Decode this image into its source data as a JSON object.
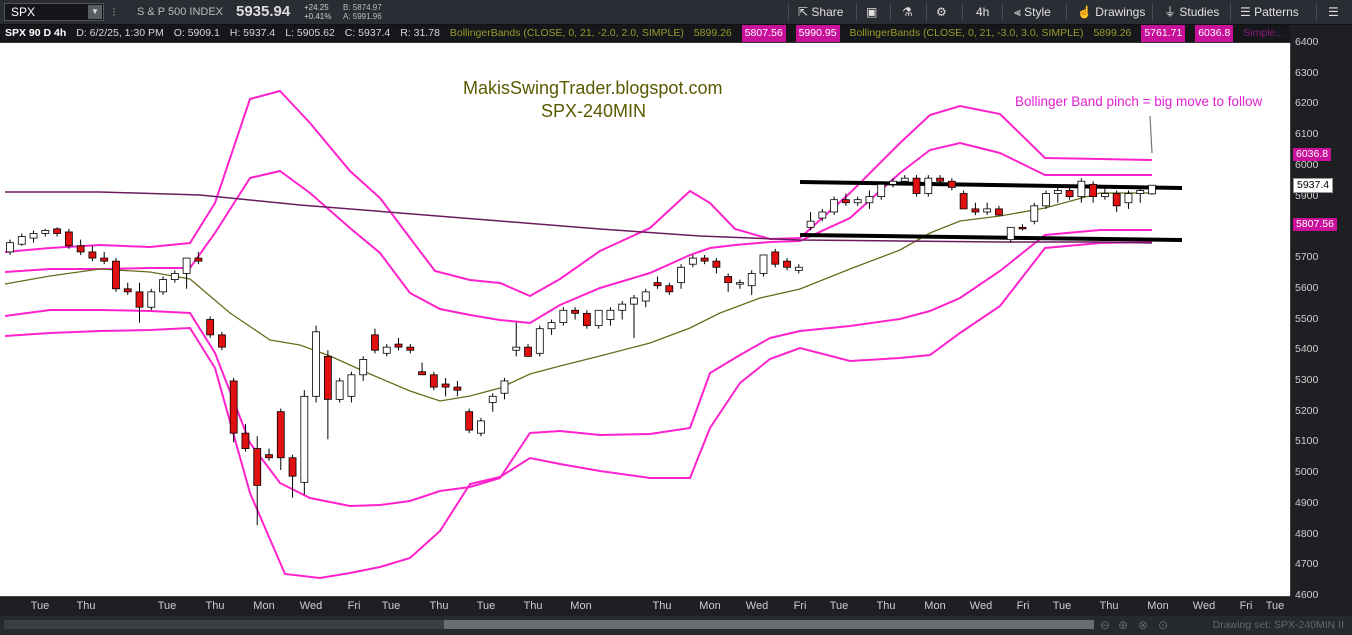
{
  "toolbar": {
    "symbol": "SPX",
    "symbol_name": "S & P 500 INDEX",
    "last": "5935.94",
    "change": "+24.25",
    "change_pct": "+0.41%",
    "bid": "B: 5874.97",
    "ask": "A: 5991.96",
    "share": "Share",
    "timeframe": "4h",
    "style": "Style",
    "drawings": "Drawings",
    "studies": "Studies",
    "patterns": "Patterns"
  },
  "infobar": {
    "title": "SPX 90 D 4h",
    "date": "D: 6/2/25, 1:30 PM",
    "open": "O: 5909.1",
    "high": "H: 5937.4",
    "low": "L: 5905.62",
    "close": "C: 5937.4",
    "range": "R: 31.78",
    "bb1_label": "BollingerBands (CLOSE, 0, 21, -2.0, 2.0, SIMPLE)",
    "bb1_mid": "5899.26",
    "bb1_low": "5807.56",
    "bb1_up": "5990.95",
    "bb2_label": "BollingerBands (CLOSE, 0, 21, -3.0, 3.0, SIMPLE)",
    "bb2_mid": "5899.26",
    "bb2_low": "5761.71",
    "bb2_up": "6036.8",
    "simple": "Simple..."
  },
  "annotations": {
    "site": "MakisSwingTrader.blogspot.com",
    "chart_name": "SPX-240MIN",
    "note": "Bollinger Band pinch = big move to follow"
  },
  "price_labels": {
    "upper_band": "6036.8",
    "last": "5937.4",
    "lower_band": "5807.56"
  },
  "footer": {
    "drawing_set": "Drawing set: SPX-240MIN II"
  },
  "colors": {
    "band": "#ff22cc",
    "mid": "#6b6b1e",
    "sma": "#6a1b5e",
    "down": "#e01010",
    "up": "#ffffff",
    "note": "#e020d0",
    "site_text": "#5a5a00"
  },
  "chart_data": {
    "type": "candlestick",
    "title": "SPX-240MIN",
    "ylim": [
      4600,
      6400
    ],
    "yticks": [
      4600,
      4700,
      4800,
      4900,
      5000,
      5100,
      5200,
      5300,
      5400,
      5500,
      5600,
      5700,
      5800,
      5900,
      6000,
      6100,
      6200,
      6300,
      6400
    ],
    "x_ticks": [
      "Tue",
      "Thu",
      "Tue",
      "Thu",
      "Mon",
      "Wed",
      "Fri",
      "Tue",
      "Thu",
      "Tue",
      "Thu",
      "Mon",
      "Thu",
      "Mon",
      "Wed",
      "Fri",
      "Tue",
      "Thu",
      "Mon",
      "Wed",
      "Fri",
      "Tue",
      "Thu",
      "Mon",
      "Wed",
      "Fri",
      "Tue"
    ],
    "candles": [
      [
        5720,
        5760,
        5710,
        5750
      ],
      [
        5745,
        5780,
        5740,
        5770
      ],
      [
        5765,
        5790,
        5750,
        5780
      ],
      [
        5780,
        5795,
        5770,
        5790
      ],
      [
        5795,
        5800,
        5770,
        5780
      ],
      [
        5785,
        5795,
        5730,
        5740
      ],
      [
        5740,
        5760,
        5710,
        5720
      ],
      [
        5720,
        5740,
        5690,
        5700
      ],
      [
        5700,
        5720,
        5680,
        5690
      ],
      [
        5690,
        5700,
        5590,
        5600
      ],
      [
        5600,
        5620,
        5580,
        5590
      ],
      [
        5590,
        5620,
        5490,
        5540
      ],
      [
        5540,
        5600,
        5530,
        5590
      ],
      [
        5590,
        5640,
        5580,
        5630
      ],
      [
        5630,
        5660,
        5620,
        5650
      ],
      [
        5650,
        5700,
        5600,
        5700
      ],
      [
        5700,
        5720,
        5680,
        5690
      ],
      [
        5500,
        5510,
        5440,
        5450
      ],
      [
        5450,
        5460,
        5400,
        5410
      ],
      [
        5300,
        5310,
        5100,
        5130
      ],
      [
        5130,
        5160,
        5070,
        5080
      ],
      [
        5080,
        5120,
        4830,
        4960
      ],
      [
        5060,
        5080,
        5040,
        5050
      ],
      [
        5200,
        5210,
        5010,
        5050
      ],
      [
        5050,
        5060,
        4920,
        4990
      ],
      [
        4970,
        5270,
        4930,
        5250
      ],
      [
        5250,
        5480,
        5230,
        5460
      ],
      [
        5380,
        5400,
        5110,
        5240
      ],
      [
        5240,
        5310,
        5230,
        5300
      ],
      [
        5250,
        5330,
        5230,
        5320
      ],
      [
        5320,
        5380,
        5300,
        5370
      ],
      [
        5450,
        5470,
        5390,
        5400
      ],
      [
        5390,
        5420,
        5380,
        5410
      ],
      [
        5420,
        5440,
        5400,
        5410
      ],
      [
        5410,
        5420,
        5390,
        5400
      ],
      [
        5330,
        5360,
        5320,
        5320
      ],
      [
        5320,
        5330,
        5270,
        5280
      ],
      [
        5290,
        5310,
        5250,
        5280
      ],
      [
        5280,
        5300,
        5250,
        5270
      ],
      [
        5200,
        5210,
        5130,
        5140
      ],
      [
        5130,
        5180,
        5120,
        5170
      ],
      [
        5230,
        5260,
        5200,
        5250
      ],
      [
        5260,
        5310,
        5240,
        5300
      ],
      [
        5400,
        5490,
        5380,
        5410
      ],
      [
        5410,
        5420,
        5380,
        5380
      ],
      [
        5390,
        5480,
        5380,
        5470
      ],
      [
        5470,
        5500,
        5450,
        5490
      ],
      [
        5490,
        5540,
        5480,
        5530
      ],
      [
        5530,
        5540,
        5500,
        5520
      ],
      [
        5520,
        5530,
        5470,
        5480
      ],
      [
        5480,
        5530,
        5470,
        5530
      ],
      [
        5500,
        5540,
        5480,
        5530
      ],
      [
        5530,
        5560,
        5500,
        5550
      ],
      [
        5550,
        5580,
        5440,
        5570
      ],
      [
        5560,
        5600,
        5540,
        5590
      ],
      [
        5620,
        5640,
        5600,
        5610
      ],
      [
        5610,
        5620,
        5580,
        5590
      ],
      [
        5620,
        5680,
        5600,
        5670
      ],
      [
        5680,
        5710,
        5670,
        5700
      ],
      [
        5700,
        5710,
        5680,
        5690
      ],
      [
        5690,
        5700,
        5650,
        5670
      ],
      [
        5640,
        5650,
        5590,
        5620
      ],
      [
        5620,
        5630,
        5600,
        5620
      ],
      [
        5610,
        5660,
        5580,
        5650
      ],
      [
        5650,
        5710,
        5640,
        5710
      ],
      [
        5720,
        5730,
        5670,
        5680
      ],
      [
        5690,
        5700,
        5660,
        5670
      ],
      [
        5660,
        5680,
        5650,
        5670
      ],
      [
        5800,
        5850,
        5790,
        5820
      ],
      [
        5830,
        5860,
        5820,
        5850
      ],
      [
        5850,
        5900,
        5840,
        5890
      ],
      [
        5890,
        5910,
        5870,
        5880
      ],
      [
        5880,
        5900,
        5870,
        5890
      ],
      [
        5880,
        5920,
        5860,
        5900
      ],
      [
        5900,
        5950,
        5890,
        5940
      ],
      [
        5940,
        5960,
        5930,
        5950
      ],
      [
        5950,
        5970,
        5940,
        5960
      ],
      [
        5960,
        5970,
        5900,
        5910
      ],
      [
        5910,
        5970,
        5900,
        5960
      ],
      [
        5960,
        5970,
        5940,
        5950
      ],
      [
        5950,
        5960,
        5920,
        5930
      ],
      [
        5910,
        5920,
        5860,
        5860
      ],
      [
        5860,
        5880,
        5840,
        5850
      ],
      [
        5850,
        5880,
        5840,
        5860
      ],
      [
        5860,
        5870,
        5840,
        5840
      ],
      [
        5760,
        5800,
        5750,
        5800
      ],
      [
        5800,
        5810,
        5790,
        5795
      ],
      [
        5820,
        5880,
        5810,
        5870
      ],
      [
        5870,
        5920,
        5860,
        5910
      ],
      [
        5910,
        5940,
        5880,
        5920
      ],
      [
        5920,
        5930,
        5890,
        5900
      ],
      [
        5900,
        5960,
        5880,
        5950
      ],
      [
        5940,
        5950,
        5880,
        5900
      ],
      [
        5900,
        5930,
        5890,
        5910
      ],
      [
        5910,
        5920,
        5850,
        5870
      ],
      [
        5880,
        5920,
        5860,
        5910
      ],
      [
        5910,
        5930,
        5880,
        5920
      ],
      [
        5909,
        5937,
        5906,
        5937
      ]
    ]
  }
}
